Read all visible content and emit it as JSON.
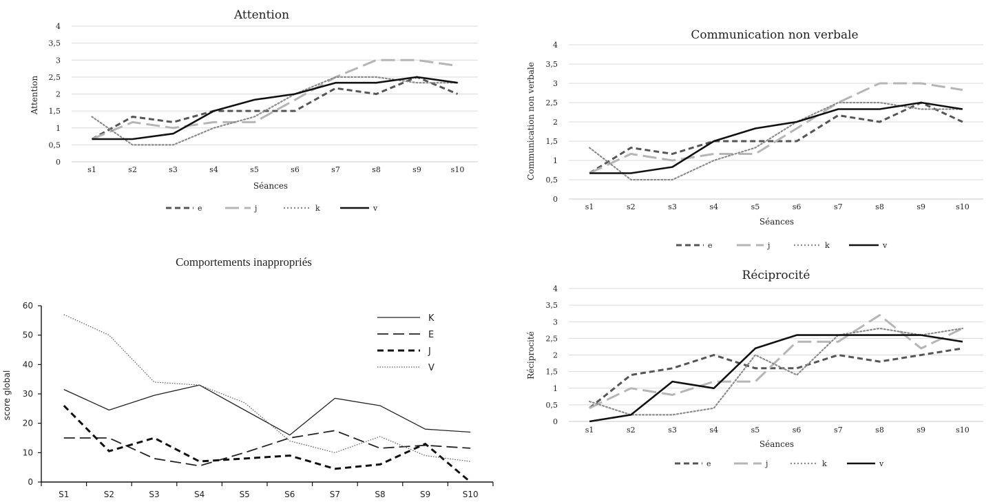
{
  "chart_data": [
    {
      "id": "attention",
      "type": "line",
      "title": "Attention",
      "xlabel": "Séances",
      "ylabel": "Attention",
      "categories": [
        "s1",
        "s2",
        "s3",
        "s4",
        "s5",
        "s6",
        "s7",
        "s8",
        "s9",
        "s10"
      ],
      "y_ticks": [
        "0",
        "0,5",
        "1",
        "1,5",
        "2",
        "2,5",
        "3",
        "3,5",
        "4"
      ],
      "ylim": [
        0,
        4
      ],
      "grid": true,
      "legend_position": "bottom",
      "series": [
        {
          "name": "e",
          "style": "dashed-dark",
          "values": [
            0.67,
            1.33,
            1.17,
            1.5,
            1.5,
            1.5,
            2.17,
            2.0,
            2.5,
            2.0
          ]
        },
        {
          "name": "j",
          "style": "longdash-light",
          "values": [
            0.67,
            1.17,
            1.0,
            1.17,
            1.17,
            1.83,
            2.5,
            3.0,
            3.0,
            2.83
          ]
        },
        {
          "name": "k",
          "style": "dotted",
          "values": [
            1.33,
            0.5,
            0.5,
            1.0,
            1.33,
            2.0,
            2.5,
            2.5,
            2.33,
            2.33
          ]
        },
        {
          "name": "v",
          "style": "solid",
          "values": [
            0.67,
            0.67,
            0.83,
            1.5,
            1.83,
            2.0,
            2.33,
            2.33,
            2.5,
            2.33
          ]
        }
      ]
    },
    {
      "id": "communication",
      "type": "line",
      "title": "Communication non verbale",
      "xlabel": "Séances",
      "ylabel": "Communication non verbale",
      "categories": [
        "s1",
        "s2",
        "s3",
        "s4",
        "s5",
        "s6",
        "s7",
        "s8",
        "s9",
        "s10"
      ],
      "y_ticks": [
        "0",
        "0,5",
        "1",
        "1,5",
        "2",
        "2,5",
        "3",
        "3,5",
        "4"
      ],
      "ylim": [
        0,
        4
      ],
      "grid": true,
      "legend_position": "bottom",
      "series": [
        {
          "name": "e",
          "style": "dashed-dark",
          "values": [
            0.67,
            1.33,
            1.17,
            1.5,
            1.5,
            1.5,
            2.17,
            2.0,
            2.5,
            2.0
          ]
        },
        {
          "name": "j",
          "style": "longdash-light",
          "values": [
            0.67,
            1.17,
            1.0,
            1.17,
            1.17,
            1.83,
            2.5,
            3.0,
            3.0,
            2.83
          ]
        },
        {
          "name": "k",
          "style": "dotted",
          "values": [
            1.33,
            0.5,
            0.5,
            1.0,
            1.33,
            2.0,
            2.5,
            2.5,
            2.33,
            2.33
          ]
        },
        {
          "name": "v",
          "style": "solid",
          "values": [
            0.67,
            0.67,
            0.83,
            1.5,
            1.83,
            2.0,
            2.33,
            2.33,
            2.5,
            2.33
          ]
        }
      ]
    },
    {
      "id": "comportements",
      "type": "line",
      "title": "Comportements inappropriés",
      "xlabel": "",
      "ylabel": "score global",
      "categories": [
        "S1",
        "S2",
        "S3",
        "S4",
        "S5",
        "S6",
        "S7",
        "S8",
        "S9",
        "S10"
      ],
      "y_ticks": [
        "0",
        "10",
        "20",
        "30",
        "40",
        "50",
        "60"
      ],
      "ylim": [
        0,
        60
      ],
      "grid": false,
      "legend_position": "top-right",
      "series": [
        {
          "name": "K",
          "style": "thin-solid",
          "values": [
            31.5,
            24.5,
            29.5,
            33,
            24.5,
            16,
            28.5,
            26,
            18,
            17
          ]
        },
        {
          "name": "E",
          "style": "thin-longdash",
          "values": [
            15,
            15,
            8,
            5.5,
            10,
            15,
            17.5,
            11.5,
            12.5,
            11.5
          ]
        },
        {
          "name": "J",
          "style": "thick-dash",
          "values": [
            26,
            10.5,
            15,
            7,
            8,
            9,
            4.5,
            6,
            13,
            0
          ]
        },
        {
          "name": "V",
          "style": "thin-dotted",
          "values": [
            57,
            50,
            34,
            33,
            27,
            14,
            10,
            15.5,
            9,
            7
          ]
        }
      ]
    },
    {
      "id": "reciprocite",
      "type": "line",
      "title": "Réciprocité",
      "xlabel": "Séances",
      "ylabel": "Réciprocité",
      "categories": [
        "s1",
        "s2",
        "s3",
        "s4",
        "s5",
        "s6",
        "s7",
        "s8",
        "s9",
        "s10"
      ],
      "y_ticks": [
        "0",
        "0,5",
        "1",
        "1,5",
        "2",
        "2,5",
        "3",
        "3,5",
        "4"
      ],
      "ylim": [
        0,
        4
      ],
      "grid": true,
      "legend_position": "bottom",
      "series": [
        {
          "name": "e",
          "style": "dashed-dark",
          "values": [
            0.4,
            1.4,
            1.6,
            2.0,
            1.6,
            1.6,
            2.0,
            1.8,
            2.0,
            2.2
          ]
        },
        {
          "name": "j",
          "style": "longdash-light",
          "values": [
            0.4,
            1.0,
            0.8,
            1.2,
            1.2,
            2.4,
            2.4,
            3.2,
            2.2,
            2.8
          ]
        },
        {
          "name": "k",
          "style": "dotted",
          "values": [
            0.6,
            0.2,
            0.2,
            0.4,
            2.0,
            1.4,
            2.6,
            2.8,
            2.6,
            2.8
          ]
        },
        {
          "name": "v",
          "style": "solid",
          "values": [
            0.0,
            0.2,
            1.2,
            1.0,
            2.2,
            2.6,
            2.6,
            2.6,
            2.6,
            2.4
          ]
        }
      ]
    }
  ]
}
